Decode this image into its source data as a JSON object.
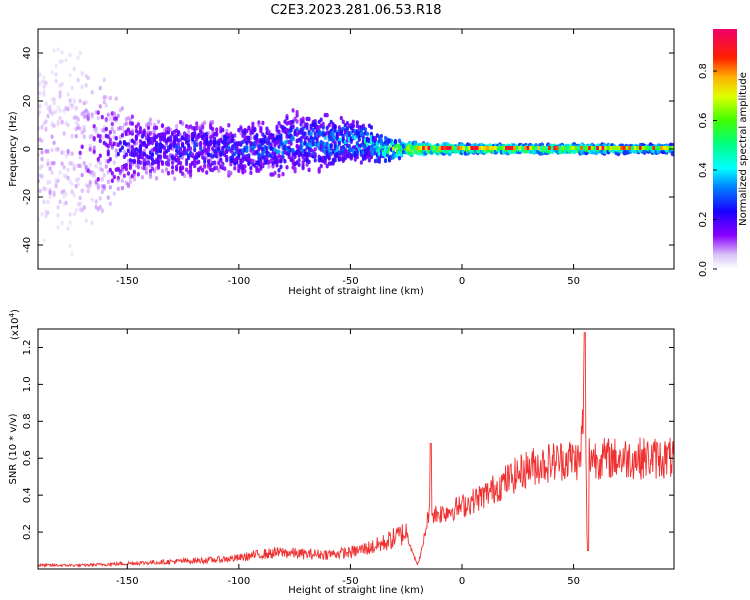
{
  "figure_title": "C2E3.2023.281.06.53.R18",
  "colorbar": {
    "label": "Normalized spectral amplitude",
    "ticks": [
      "0.0",
      "0.2",
      "0.4",
      "0.6",
      "0.8"
    ],
    "tick_values": [
      0.0,
      0.2,
      0.4,
      0.6,
      0.8
    ],
    "range": [
      0.0,
      0.97
    ],
    "colormap": "rainbow (purple-blue-cyan-green-yellow-red-magenta)"
  },
  "chart_data": [
    {
      "type": "heatmap",
      "title": "",
      "xlabel": "Height of straight line (km)",
      "ylabel": "Frequency (Hz)",
      "xlim": [
        -190,
        95
      ],
      "ylim": [
        -50,
        50
      ],
      "xticks": [
        -150,
        -100,
        -50,
        0,
        50
      ],
      "xtick_labels": [
        "-150",
        "-100",
        "-50",
        "0",
        "50"
      ],
      "yticks": [
        -40,
        -20,
        0,
        20,
        40
      ],
      "ytick_labels": [
        "-40",
        "-20",
        "0",
        "20",
        "40"
      ],
      "grid": false,
      "description_points": [
        {
          "x": -175,
          "spread_hz": 48,
          "amplitude": 0.1
        },
        {
          "x": -145,
          "spread_hz": 14,
          "amplitude": 0.25
        },
        {
          "x": -100,
          "spread_hz": 12,
          "amplitude": 0.3
        },
        {
          "x": -70,
          "spread_hz": 14,
          "amplitude": 0.35
        },
        {
          "x": -40,
          "spread_hz": 8,
          "amplitude": 0.45
        },
        {
          "x": -25,
          "spread_hz": 3,
          "amplitude": 0.75
        },
        {
          "x": 0,
          "spread_hz": 2,
          "amplitude": 0.6
        },
        {
          "x": 40,
          "spread_hz": 2,
          "amplitude": 0.65
        },
        {
          "x": 90,
          "spread_hz": 2,
          "amplitude": 0.5
        }
      ]
    },
    {
      "type": "line",
      "title": "",
      "xlabel": "Height of straight line (km)",
      "ylabel": "SNR (10 * v/v)",
      "y_multiplier_label": "(x10",
      "y_multiplier_exp": "4",
      "y_multiplier_close": ")",
      "xlim": [
        -190,
        95
      ],
      "ylim": [
        0,
        1.3
      ],
      "xticks": [
        -150,
        -100,
        -50,
        0,
        50
      ],
      "xtick_labels": [
        "-150",
        "-100",
        "-50",
        "0",
        "50"
      ],
      "yticks": [
        0.2,
        0.4,
        0.6,
        0.8,
        1.0,
        1.2
      ],
      "ytick_labels": [
        "0.2",
        "0.4",
        "0.6",
        "0.8",
        "1.0",
        "1.2"
      ],
      "grid": false,
      "series": [
        {
          "color": "#f03030",
          "x": [
            -190,
            -170,
            -150,
            -130,
            -110,
            -100,
            -90,
            -80,
            -70,
            -60,
            -50,
            -40,
            -35,
            -30,
            -25,
            -20,
            -18,
            -15,
            -10,
            -5,
            0,
            10,
            20,
            30,
            40,
            50,
            53,
            55,
            56,
            57,
            60,
            70,
            80,
            90,
            95
          ],
          "y": [
            0.02,
            0.02,
            0.03,
            0.04,
            0.05,
            0.06,
            0.08,
            0.09,
            0.08,
            0.08,
            0.09,
            0.12,
            0.14,
            0.17,
            0.2,
            0.02,
            0.1,
            0.3,
            0.3,
            0.32,
            0.34,
            0.4,
            0.48,
            0.55,
            0.58,
            0.6,
            0.58,
            1.0,
            0.2,
            0.62,
            0.6,
            0.6,
            0.6,
            0.6,
            0.6
          ]
        }
      ]
    }
  ]
}
